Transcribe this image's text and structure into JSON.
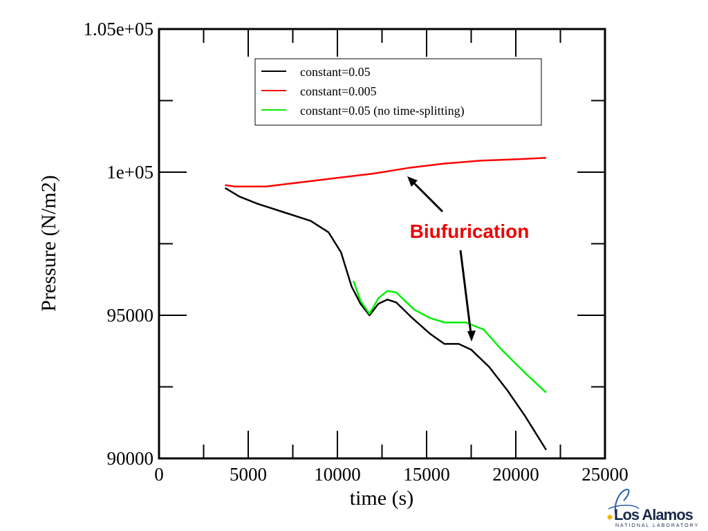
{
  "chart_data": {
    "type": "line",
    "xlabel": "time (s)",
    "ylabel": "Pressure (N/m2)",
    "xlim": [
      0,
      25000
    ],
    "ylim": [
      90000,
      105000
    ],
    "xticks": [
      "0",
      "5000",
      "10000",
      "15000",
      "20000",
      "25000"
    ],
    "xtick_values": [
      0,
      5000,
      10000,
      15000,
      20000,
      25000
    ],
    "yticks": [
      "90000",
      "95000",
      "1e+05",
      "1.05e+05"
    ],
    "ytick_values": [
      90000,
      95000,
      100000,
      105000
    ],
    "grid": false,
    "legend_position": "top-center",
    "series": [
      {
        "name": "constant=0.05",
        "color": "#000000",
        "points": [
          [
            3700,
            99450
          ],
          [
            4500,
            99150
          ],
          [
            5500,
            98900
          ],
          [
            7000,
            98600
          ],
          [
            8500,
            98300
          ],
          [
            9500,
            97900
          ],
          [
            10200,
            97200
          ],
          [
            10800,
            96000
          ],
          [
            11300,
            95400
          ],
          [
            11800,
            95000
          ],
          [
            12300,
            95400
          ],
          [
            12800,
            95550
          ],
          [
            13300,
            95450
          ],
          [
            14200,
            94900
          ],
          [
            15200,
            94350
          ],
          [
            16000,
            94000
          ],
          [
            16800,
            94000
          ],
          [
            17500,
            93800
          ],
          [
            18500,
            93200
          ],
          [
            19500,
            92400
          ],
          [
            20500,
            91500
          ],
          [
            21700,
            90300
          ]
        ]
      },
      {
        "name": "constant=0.005",
        "color": "#ff0000",
        "points": [
          [
            3700,
            99550
          ],
          [
            4200,
            99500
          ],
          [
            6000,
            99500
          ],
          [
            8000,
            99650
          ],
          [
            10000,
            99800
          ],
          [
            12000,
            99950
          ],
          [
            14000,
            100150
          ],
          [
            16000,
            100300
          ],
          [
            18000,
            100400
          ],
          [
            20000,
            100450
          ],
          [
            21700,
            100500
          ]
        ]
      },
      {
        "name": "constant=0.05 (no time-splitting)",
        "color": "#00ee00",
        "points": [
          [
            10900,
            96200
          ],
          [
            11300,
            95500
          ],
          [
            11800,
            95050
          ],
          [
            12300,
            95600
          ],
          [
            12800,
            95850
          ],
          [
            13300,
            95800
          ],
          [
            14300,
            95200
          ],
          [
            15200,
            94900
          ],
          [
            16000,
            94750
          ],
          [
            17200,
            94750
          ],
          [
            18200,
            94500
          ],
          [
            19200,
            93800
          ],
          [
            20500,
            93000
          ],
          [
            21700,
            92300
          ]
        ]
      }
    ],
    "annotations": [
      {
        "text": "Biufurication",
        "color": "#ee0000"
      }
    ]
  },
  "logo": {
    "name": "Los Alamos",
    "subtitle": "NATIONAL LABORATORY"
  }
}
